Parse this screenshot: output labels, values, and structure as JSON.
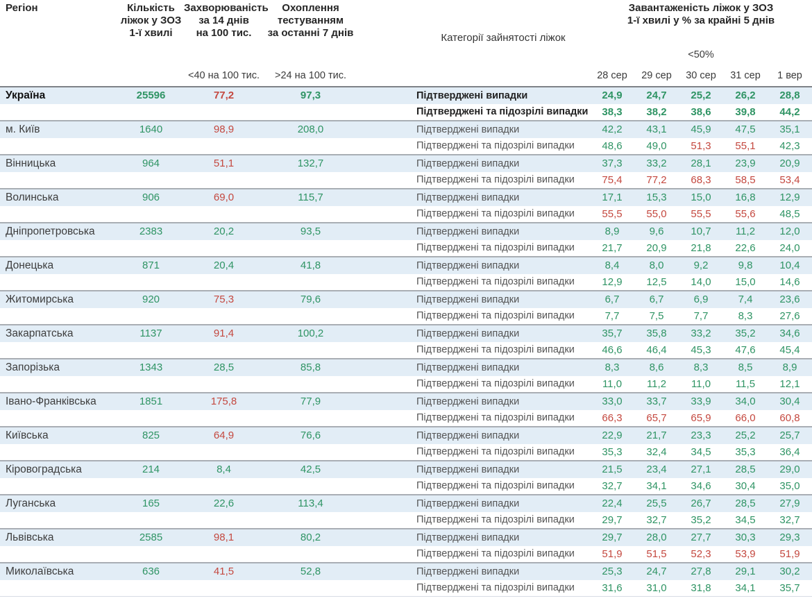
{
  "chart_data": {
    "type": "table",
    "header": {
      "region": "Регіон",
      "beds": "Кількість\nліжок у ЗОЗ\n1-ї хвилі",
      "incidence": "Захворюваність\nза 14 днів\nна 100 тис.",
      "testing": "Охоплення\nтестуванням\nза останні 7 днів",
      "categories": "Категорії зайнятості ліжок",
      "occupancy": "Завантаженість ліжок у ЗОЗ\n1-ї хвилі у % за крайні 5 днів",
      "incidence_threshold": "<40 на 100 тис.",
      "testing_threshold": ">24 на 100 тис.",
      "occupancy_threshold": "<50%",
      "dates": [
        "28 сер",
        "29 сер",
        "30 сер",
        "31 сер",
        "1 вер"
      ]
    },
    "category_labels": {
      "confirmed": "Підтверджені випадки",
      "suspected": "Підтверджені та підозрілі випадки"
    },
    "colors": {
      "green": "#2f9464",
      "red": "#c4483f",
      "row_band": "#e2edf6"
    },
    "rows": [
      {
        "region": "Україна",
        "bold": true,
        "beds": "25596",
        "beds_c": "g",
        "inc": "77,2",
        "inc_c": "r",
        "test": "97,3",
        "test_c": "g",
        "confirmed": {
          "v": [
            "24,9",
            "24,7",
            "25,2",
            "26,2",
            "28,8"
          ],
          "c": "ggggg"
        },
        "suspected": {
          "v": [
            "38,3",
            "38,2",
            "38,6",
            "39,8",
            "44,2"
          ],
          "c": "ggggg"
        }
      },
      {
        "region": "м. Київ",
        "bold": false,
        "beds": "1640",
        "beds_c": "g",
        "inc": "98,9",
        "inc_c": "r",
        "test": "208,0",
        "test_c": "g",
        "confirmed": {
          "v": [
            "42,2",
            "43,1",
            "45,9",
            "47,5",
            "35,1"
          ],
          "c": "ggggg"
        },
        "suspected": {
          "v": [
            "48,6",
            "49,0",
            "51,3",
            "55,1",
            "42,3"
          ],
          "c": "ggrrg"
        }
      },
      {
        "region": "Вінницька",
        "bold": false,
        "beds": "964",
        "beds_c": "g",
        "inc": "51,1",
        "inc_c": "r",
        "test": "132,7",
        "test_c": "g",
        "confirmed": {
          "v": [
            "37,3",
            "33,2",
            "28,1",
            "23,9",
            "20,9"
          ],
          "c": "ggggg"
        },
        "suspected": {
          "v": [
            "75,4",
            "77,2",
            "68,3",
            "58,5",
            "53,4"
          ],
          "c": "rrrrr"
        }
      },
      {
        "region": "Волинська",
        "bold": false,
        "beds": "906",
        "beds_c": "g",
        "inc": "69,0",
        "inc_c": "r",
        "test": "115,7",
        "test_c": "g",
        "confirmed": {
          "v": [
            "17,1",
            "15,3",
            "15,0",
            "16,8",
            "12,9"
          ],
          "c": "ggggg"
        },
        "suspected": {
          "v": [
            "55,5",
            "55,0",
            "55,5",
            "55,6",
            "48,5"
          ],
          "c": "rrrrg"
        }
      },
      {
        "region": "Дніпропетровська",
        "bold": false,
        "beds": "2383",
        "beds_c": "g",
        "inc": "20,2",
        "inc_c": "g",
        "test": "93,5",
        "test_c": "g",
        "confirmed": {
          "v": [
            "8,9",
            "9,6",
            "10,7",
            "11,2",
            "12,0"
          ],
          "c": "ggggg"
        },
        "suspected": {
          "v": [
            "21,7",
            "20,9",
            "21,8",
            "22,6",
            "24,0"
          ],
          "c": "ggggg"
        }
      },
      {
        "region": "Донецька",
        "bold": false,
        "beds": "871",
        "beds_c": "g",
        "inc": "20,4",
        "inc_c": "g",
        "test": "41,8",
        "test_c": "g",
        "confirmed": {
          "v": [
            "8,4",
            "8,0",
            "9,2",
            "9,8",
            "10,4"
          ],
          "c": "ggggg"
        },
        "suspected": {
          "v": [
            "12,9",
            "12,5",
            "14,0",
            "15,0",
            "14,6"
          ],
          "c": "ggggg"
        }
      },
      {
        "region": "Житомирська",
        "bold": false,
        "beds": "920",
        "beds_c": "g",
        "inc": "75,3",
        "inc_c": "r",
        "test": "79,6",
        "test_c": "g",
        "confirmed": {
          "v": [
            "6,7",
            "6,7",
            "6,9",
            "7,4",
            "23,6"
          ],
          "c": "ggggg"
        },
        "suspected": {
          "v": [
            "7,7",
            "7,5",
            "7,7",
            "8,3",
            "27,6"
          ],
          "c": "ggggg"
        }
      },
      {
        "region": "Закарпатська",
        "bold": false,
        "beds": "1137",
        "beds_c": "g",
        "inc": "91,4",
        "inc_c": "r",
        "test": "100,2",
        "test_c": "g",
        "confirmed": {
          "v": [
            "35,7",
            "35,8",
            "33,2",
            "35,2",
            "34,6"
          ],
          "c": "ggggg"
        },
        "suspected": {
          "v": [
            "46,6",
            "46,4",
            "45,3",
            "47,6",
            "45,4"
          ],
          "c": "ggggg"
        }
      },
      {
        "region": "Запорізька",
        "bold": false,
        "beds": "1343",
        "beds_c": "g",
        "inc": "28,5",
        "inc_c": "g",
        "test": "85,8",
        "test_c": "g",
        "confirmed": {
          "v": [
            "8,3",
            "8,6",
            "8,3",
            "8,5",
            "8,9"
          ],
          "c": "ggggg"
        },
        "suspected": {
          "v": [
            "11,0",
            "11,2",
            "11,0",
            "11,5",
            "12,1"
          ],
          "c": "ggggg"
        }
      },
      {
        "region": "Івано-Франківська",
        "bold": false,
        "beds": "1851",
        "beds_c": "g",
        "inc": "175,8",
        "inc_c": "r",
        "test": "77,9",
        "test_c": "g",
        "confirmed": {
          "v": [
            "33,0",
            "33,7",
            "33,9",
            "34,0",
            "30,4"
          ],
          "c": "ggggg"
        },
        "suspected": {
          "v": [
            "66,3",
            "65,7",
            "65,9",
            "66,0",
            "60,8"
          ],
          "c": "rrrrr"
        }
      },
      {
        "region": "Київська",
        "bold": false,
        "beds": "825",
        "beds_c": "g",
        "inc": "64,9",
        "inc_c": "r",
        "test": "76,6",
        "test_c": "g",
        "confirmed": {
          "v": [
            "22,9",
            "21,7",
            "23,3",
            "25,2",
            "25,7"
          ],
          "c": "ggggg"
        },
        "suspected": {
          "v": [
            "35,3",
            "32,4",
            "34,5",
            "35,3",
            "36,4"
          ],
          "c": "ggggg"
        }
      },
      {
        "region": "Кіровоградська",
        "bold": false,
        "beds": "214",
        "beds_c": "g",
        "inc": "8,4",
        "inc_c": "g",
        "test": "42,5",
        "test_c": "g",
        "confirmed": {
          "v": [
            "21,5",
            "23,4",
            "27,1",
            "28,5",
            "29,0"
          ],
          "c": "ggggg"
        },
        "suspected": {
          "v": [
            "32,7",
            "34,1",
            "34,6",
            "30,4",
            "35,0"
          ],
          "c": "ggggg"
        }
      },
      {
        "region": "Луганська",
        "bold": false,
        "beds": "165",
        "beds_c": "g",
        "inc": "22,6",
        "inc_c": "g",
        "test": "113,4",
        "test_c": "g",
        "confirmed": {
          "v": [
            "22,4",
            "25,5",
            "26,7",
            "28,5",
            "27,9"
          ],
          "c": "ggggg"
        },
        "suspected": {
          "v": [
            "29,7",
            "32,7",
            "35,2",
            "34,5",
            "32,7"
          ],
          "c": "ggggg"
        }
      },
      {
        "region": "Львівська",
        "bold": false,
        "beds": "2585",
        "beds_c": "g",
        "inc": "98,1",
        "inc_c": "r",
        "test": "80,2",
        "test_c": "g",
        "confirmed": {
          "v": [
            "29,7",
            "28,0",
            "27,7",
            "30,3",
            "29,3"
          ],
          "c": "ggggg"
        },
        "suspected": {
          "v": [
            "51,9",
            "51,5",
            "52,3",
            "53,9",
            "51,9"
          ],
          "c": "rrrrr"
        }
      },
      {
        "region": "Миколаївська",
        "bold": false,
        "beds": "636",
        "beds_c": "g",
        "inc": "41,5",
        "inc_c": "r",
        "test": "52,8",
        "test_c": "g",
        "confirmed": {
          "v": [
            "25,3",
            "24,7",
            "27,8",
            "29,1",
            "30,2"
          ],
          "c": "ggggg"
        },
        "suspected": {
          "v": [
            "31,6",
            "31,0",
            "31,8",
            "34,1",
            "35,7"
          ],
          "c": "ggggg"
        }
      }
    ]
  }
}
